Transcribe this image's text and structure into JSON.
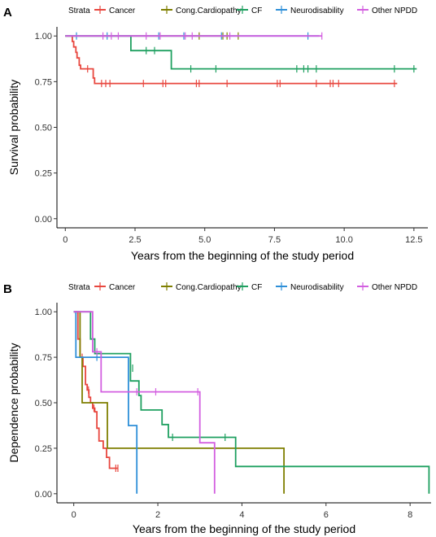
{
  "chart_data": [
    {
      "panel": "A",
      "type": "line",
      "style": "step",
      "title": "",
      "xlabel": "Years from the beginning of the study period",
      "ylabel": "Survival probability",
      "xlim": [
        -0.3,
        13.0
      ],
      "ylim": [
        -0.05,
        1.05
      ],
      "xticks": [
        0,
        2.5,
        5,
        7.5,
        10,
        12.5
      ],
      "xtick_labels": [
        "0",
        "2.5",
        "5.0",
        "7.5",
        "10.0",
        "12.5"
      ],
      "yticks": [
        0,
        0.25,
        0.5,
        0.75,
        1
      ],
      "ytick_labels": [
        "0.00",
        "0.25",
        "0.50",
        "0.75",
        "1.00"
      ],
      "grid": false,
      "legend_title": "Strata",
      "legend_position": "top",
      "series": [
        {
          "name": "Cancer",
          "color": "#E8473F",
          "steps": [
            [
              0,
              1.0
            ],
            [
              0.25,
              0.97
            ],
            [
              0.3,
              0.94
            ],
            [
              0.38,
              0.91
            ],
            [
              0.42,
              0.88
            ],
            [
              0.5,
              0.84
            ],
            [
              0.55,
              0.82
            ],
            [
              1.0,
              0.77
            ],
            [
              1.05,
              0.74
            ],
            [
              11.9,
              0.74
            ]
          ],
          "censor": [
            [
              0.8,
              0.82
            ],
            [
              1.3,
              0.74
            ],
            [
              1.45,
              0.74
            ],
            [
              1.6,
              0.74
            ],
            [
              2.8,
              0.74
            ],
            [
              3.5,
              0.74
            ],
            [
              3.6,
              0.74
            ],
            [
              4.7,
              0.74
            ],
            [
              4.8,
              0.74
            ],
            [
              5.8,
              0.74
            ],
            [
              7.6,
              0.74
            ],
            [
              7.7,
              0.74
            ],
            [
              9.0,
              0.74
            ],
            [
              9.5,
              0.74
            ],
            [
              9.6,
              0.74
            ],
            [
              9.8,
              0.74
            ],
            [
              11.8,
              0.74
            ]
          ]
        },
        {
          "name": "Cong.Cardiopathy",
          "color": "#7F7F00",
          "steps": [
            [
              0,
              1.0
            ],
            [
              5.9,
              1.0
            ]
          ],
          "censor": [
            [
              4.8,
              1.0
            ],
            [
              5.65,
              1.0
            ],
            [
              5.8,
              1.0
            ],
            [
              6.2,
              1.0
            ]
          ]
        },
        {
          "name": "CF",
          "color": "#1FA060",
          "steps": [
            [
              0,
              1.0
            ],
            [
              2.35,
              1.0
            ],
            [
              2.35,
              0.92
            ],
            [
              3.8,
              0.92
            ],
            [
              3.8,
              0.82
            ],
            [
              12.6,
              0.82
            ]
          ],
          "censor": [
            [
              2.9,
              0.92
            ],
            [
              3.2,
              0.92
            ],
            [
              4.5,
              0.82
            ],
            [
              5.4,
              0.82
            ],
            [
              8.3,
              0.82
            ],
            [
              8.55,
              0.82
            ],
            [
              8.7,
              0.82
            ],
            [
              9.0,
              0.82
            ],
            [
              11.8,
              0.82
            ],
            [
              12.5,
              0.82
            ]
          ]
        },
        {
          "name": "Neurodisability",
          "color": "#2E8FD8",
          "steps": [
            [
              0,
              1.0
            ],
            [
              9.1,
              1.0
            ]
          ],
          "censor": [
            [
              0.4,
              1.0
            ],
            [
              1.5,
              1.0
            ],
            [
              3.35,
              1.0
            ],
            [
              4.25,
              1.0
            ],
            [
              5.6,
              1.0
            ],
            [
              8.7,
              1.0
            ]
          ]
        },
        {
          "name": "Other NPDD",
          "color": "#D35FE0",
          "steps": [
            [
              0,
              1.0
            ],
            [
              9.2,
              1.0
            ]
          ],
          "censor": [
            [
              1.35,
              1.0
            ],
            [
              1.65,
              1.0
            ],
            [
              1.9,
              1.0
            ],
            [
              2.9,
              1.0
            ],
            [
              3.4,
              1.0
            ],
            [
              4.3,
              1.0
            ],
            [
              4.55,
              1.0
            ],
            [
              5.9,
              1.0
            ],
            [
              9.2,
              1.0
            ]
          ]
        }
      ]
    },
    {
      "panel": "B",
      "type": "line",
      "style": "step",
      "title": "",
      "xlabel": "Years from the beginning of the study period",
      "ylabel": "Dependence probability",
      "xlim": [
        -0.4,
        8.5
      ],
      "ylim": [
        -0.05,
        1.05
      ],
      "xticks": [
        0,
        2,
        4,
        6,
        8
      ],
      "xtick_labels": [
        "0",
        "2",
        "4",
        "6",
        "8"
      ],
      "yticks": [
        0,
        0.25,
        0.5,
        0.75,
        1
      ],
      "ytick_labels": [
        "0.00",
        "0.25",
        "0.50",
        "0.75",
        "1.00"
      ],
      "grid": false,
      "legend_title": "Strata",
      "legend_position": "top",
      "series": [
        {
          "name": "Cancer",
          "color": "#E8473F",
          "steps": [
            [
              0,
              1.0
            ],
            [
              0.1,
              0.85
            ],
            [
              0.15,
              0.75
            ],
            [
              0.22,
              0.7
            ],
            [
              0.28,
              0.6
            ],
            [
              0.32,
              0.57
            ],
            [
              0.36,
              0.53
            ],
            [
              0.4,
              0.5
            ],
            [
              0.45,
              0.47
            ],
            [
              0.5,
              0.45
            ],
            [
              0.55,
              0.36
            ],
            [
              0.6,
              0.29
            ],
            [
              0.7,
              0.25
            ],
            [
              0.78,
              0.2
            ],
            [
              0.85,
              0.14
            ],
            [
              1.05,
              0.14
            ]
          ],
          "censor": [
            [
              0.2,
              0.75
            ],
            [
              0.35,
              0.57
            ],
            [
              0.48,
              0.47
            ],
            [
              1.0,
              0.14
            ],
            [
              1.05,
              0.14
            ]
          ]
        },
        {
          "name": "Cong.Cardiopathy",
          "color": "#7F7F00",
          "steps": [
            [
              0,
              1.0
            ],
            [
              0.15,
              0.75
            ],
            [
              0.2,
              0.5
            ],
            [
              0.8,
              0.5
            ],
            [
              0.8,
              0.25
            ],
            [
              5.0,
              0.25
            ],
            [
              5.0,
              0.0
            ]
          ],
          "censor": []
        },
        {
          "name": "CF",
          "color": "#1FA060",
          "steps": [
            [
              0,
              1.0
            ],
            [
              0.4,
              1.0
            ],
            [
              0.4,
              0.85
            ],
            [
              0.5,
              0.85
            ],
            [
              0.5,
              0.77
            ],
            [
              1.35,
              0.77
            ],
            [
              1.35,
              0.62
            ],
            [
              1.55,
              0.62
            ],
            [
              1.55,
              0.54
            ],
            [
              1.6,
              0.54
            ],
            [
              1.6,
              0.46
            ],
            [
              2.1,
              0.46
            ],
            [
              2.1,
              0.38
            ],
            [
              2.25,
              0.38
            ],
            [
              2.25,
              0.31
            ],
            [
              3.85,
              0.31
            ],
            [
              3.85,
              0.15
            ],
            [
              8.45,
              0.15
            ],
            [
              8.45,
              0.0
            ]
          ],
          "censor": [
            [
              1.4,
              0.69
            ],
            [
              2.35,
              0.31
            ],
            [
              3.6,
              0.31
            ]
          ]
        },
        {
          "name": "Neurodisability",
          "color": "#2E8FD8",
          "steps": [
            [
              0,
              1.0
            ],
            [
              0.05,
              1.0
            ],
            [
              0.05,
              0.75
            ],
            [
              1.3,
              0.75
            ],
            [
              1.3,
              0.375
            ],
            [
              1.5,
              0.375
            ],
            [
              1.5,
              0.0
            ]
          ],
          "censor": [
            [
              0.55,
              0.75
            ]
          ]
        },
        {
          "name": "Other NPDD",
          "color": "#D35FE0",
          "steps": [
            [
              0,
              1.0
            ],
            [
              0.45,
              1.0
            ],
            [
              0.45,
              0.78
            ],
            [
              0.65,
              0.78
            ],
            [
              0.65,
              0.56
            ],
            [
              3.0,
              0.56
            ],
            [
              3.0,
              0.28
            ],
            [
              3.35,
              0.28
            ],
            [
              3.35,
              0.0
            ]
          ],
          "censor": [
            [
              0.55,
              0.78
            ],
            [
              1.5,
              0.56
            ],
            [
              1.95,
              0.56
            ],
            [
              2.95,
              0.56
            ]
          ]
        }
      ]
    }
  ]
}
